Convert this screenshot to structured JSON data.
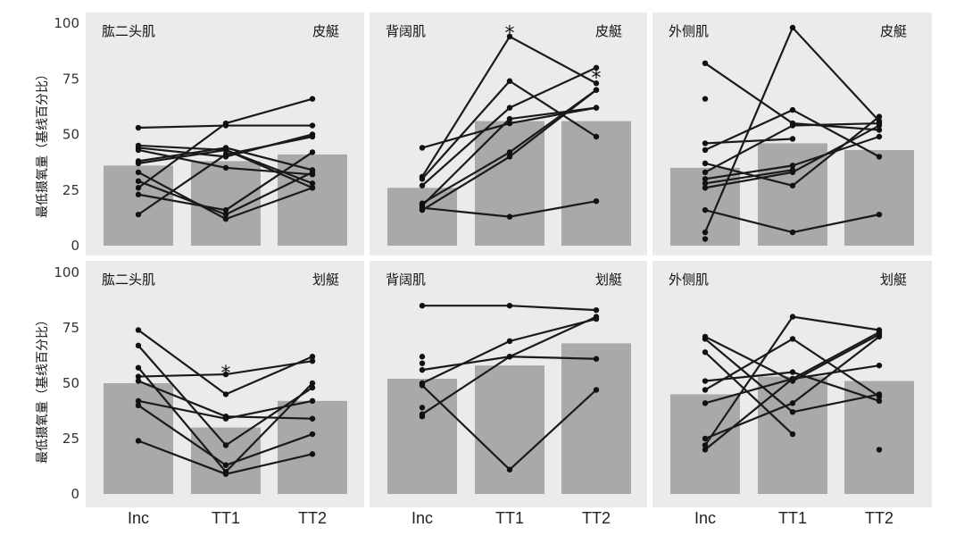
{
  "chart_data": {
    "type": "bar",
    "ylabel": "最低摄氧量（基线百分比）",
    "categories": [
      "Inc",
      "TT1",
      "TT2"
    ],
    "yticks": [
      0,
      25,
      50,
      75,
      100
    ],
    "ylim": [
      0,
      100
    ],
    "grid": false,
    "panels": [
      {
        "muscle": "肱二头肌",
        "sport": "皮艇",
        "bars": [
          36,
          38,
          41
        ],
        "subjects": [
          [
            53,
            54,
            54
          ],
          [
            45,
            43,
            26
          ],
          [
            44,
            40,
            50
          ],
          [
            43,
            35,
            32
          ],
          [
            38,
            44,
            34
          ],
          [
            37,
            43,
            28
          ],
          [
            33,
            12,
            26
          ],
          [
            29,
            14,
            33
          ],
          [
            26,
            55,
            66
          ],
          [
            23,
            16,
            42
          ],
          [
            14,
            41,
            49
          ]
        ],
        "stars": []
      },
      {
        "muscle": "背阔肌",
        "sport": "皮艇",
        "bars": [
          26,
          56,
          56
        ],
        "subjects": [
          [
            44,
            55,
            62
          ],
          [
            31,
            94,
            73
          ],
          [
            30,
            74,
            49
          ],
          [
            27,
            62,
            80
          ],
          [
            19,
            42,
            70
          ],
          [
            18,
            57,
            62
          ],
          [
            17,
            13,
            20
          ],
          [
            16,
            40,
            70
          ]
        ],
        "stars": [
          {
            "category": "TT1",
            "value": 99,
            "text": "*"
          },
          {
            "category": "TT2",
            "value": 79,
            "text": "*"
          }
        ]
      },
      {
        "muscle": "外侧肌",
        "sport": "皮艇",
        "bars": [
          35,
          46,
          43
        ],
        "subjects": [
          [
            82,
            55,
            52
          ],
          [
            66,
            null,
            null
          ],
          [
            46,
            48,
            null
          ],
          [
            43,
            61,
            40
          ],
          [
            37,
            27,
            58
          ],
          [
            33,
            54,
            55
          ],
          [
            30,
            36,
            49
          ],
          [
            28,
            34,
            null
          ],
          [
            26,
            33,
            54
          ],
          [
            16,
            6,
            14
          ],
          [
            6,
            98,
            56
          ],
          [
            3,
            null,
            null
          ]
        ],
        "stars": []
      },
      {
        "muscle": "肱二头肌",
        "sport": "划艇",
        "bars": [
          50,
          30,
          42
        ],
        "subjects": [
          [
            74,
            45,
            62
          ],
          [
            67,
            22,
            48
          ],
          [
            57,
            10,
            50
          ],
          [
            53,
            54,
            60
          ],
          [
            51,
            35,
            34
          ],
          [
            42,
            34,
            42
          ],
          [
            40,
            13,
            27
          ],
          [
            24,
            9,
            18
          ]
        ],
        "stars": [
          {
            "category": "TT1",
            "value": 58,
            "text": "*"
          }
        ]
      },
      {
        "muscle": "背阔肌",
        "sport": "划艇",
        "bars": [
          52,
          58,
          68
        ],
        "subjects": [
          [
            85,
            85,
            83
          ],
          [
            62,
            null,
            null
          ],
          [
            59,
            null,
            null
          ],
          [
            56,
            62,
            61
          ],
          [
            50,
            69,
            79
          ],
          [
            49,
            11,
            47
          ],
          [
            39,
            null,
            null
          ],
          [
            36,
            62,
            80
          ],
          [
            35,
            null,
            null
          ]
        ],
        "stars": []
      },
      {
        "muscle": "外侧肌",
        "sport": "划艇",
        "bars": [
          45,
          53,
          51
        ],
        "subjects": [
          [
            71,
            51,
            72
          ],
          [
            70,
            37,
            45
          ],
          [
            64,
            27,
            null
          ],
          [
            51,
            55,
            42
          ],
          [
            47,
            70,
            44
          ],
          [
            41,
            52,
            58
          ],
          [
            25,
            41,
            71
          ],
          [
            22,
            80,
            74
          ],
          [
            20,
            52,
            73
          ],
          [
            null,
            null,
            20
          ]
        ],
        "stars": []
      }
    ]
  }
}
